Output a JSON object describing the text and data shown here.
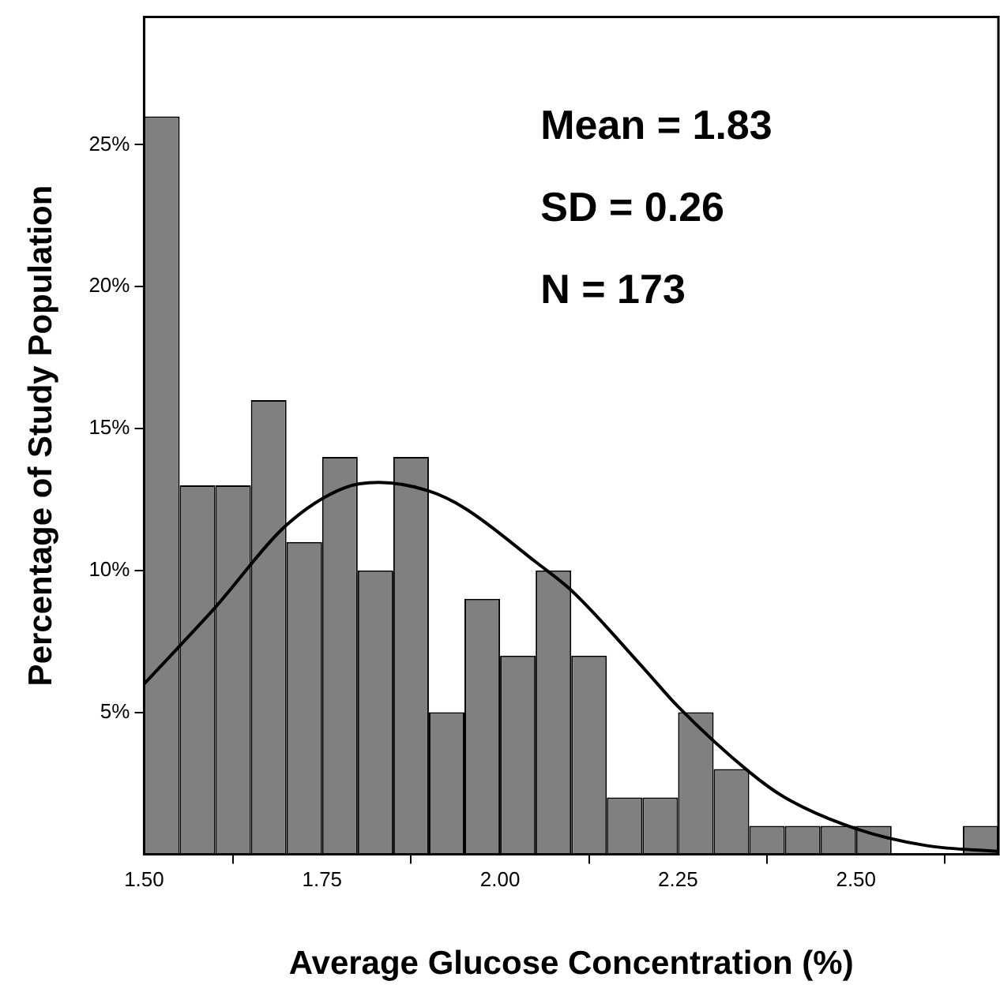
{
  "chart_data": {
    "type": "histogram",
    "xlabel": "Average Glucose Concentration (%)",
    "ylabel": "Percentage of Study Population",
    "bins": [
      1.5,
      1.55,
      1.6,
      1.65,
      1.7,
      1.75,
      1.8,
      1.85,
      1.9,
      1.95,
      2.0,
      2.05,
      2.1,
      2.15,
      2.2,
      2.25,
      2.3,
      2.35,
      2.4,
      2.45,
      2.5,
      2.55,
      2.6,
      2.65,
      2.7
    ],
    "values": [
      26,
      13,
      13,
      16,
      11,
      14,
      10,
      14,
      5,
      9,
      7,
      10,
      7,
      2,
      2,
      5,
      3,
      1,
      1,
      1,
      1,
      0,
      0,
      1
    ],
    "color": "#808080",
    "series": [
      {
        "type": "line",
        "color": "#000000",
        "x": [
          1.5,
          1.6,
          1.7,
          1.78,
          1.83,
          1.9,
          1.95,
          2.05,
          2.1,
          2.2,
          2.25,
          2.35,
          2.4,
          2.5,
          2.6,
          2.7
        ],
        "values": [
          6,
          8.7,
          11.6,
          12.9,
          13.1,
          12.8,
          12.2,
          10.3,
          9.3,
          6.6,
          5.2,
          2.9,
          2.0,
          0.9,
          0.3,
          0.1
        ]
      }
    ],
    "xlim": [
      1.5,
      2.7
    ],
    "xticks": [
      {
        "value": 1.5,
        "label": "1.50"
      },
      {
        "value": 1.75,
        "label": "1.75"
      },
      {
        "value": 2.0,
        "label": "2.00"
      },
      {
        "value": 2.25,
        "label": "2.25"
      },
      {
        "value": 2.5,
        "label": "2.50"
      }
    ],
    "ylim": [
      0,
      29.5
    ],
    "yticks": [
      {
        "value": 5,
        "label": "5%"
      },
      {
        "value": 10,
        "label": "10%"
      },
      {
        "value": 15,
        "label": "15%"
      },
      {
        "value": 20,
        "label": "20%"
      },
      {
        "value": 25,
        "label": "25%"
      }
    ],
    "annotations": [
      "Mean = 1.83",
      "SD = 0.26",
      "N = 173"
    ],
    "grid": false,
    "legend": false,
    "marker": "none"
  }
}
